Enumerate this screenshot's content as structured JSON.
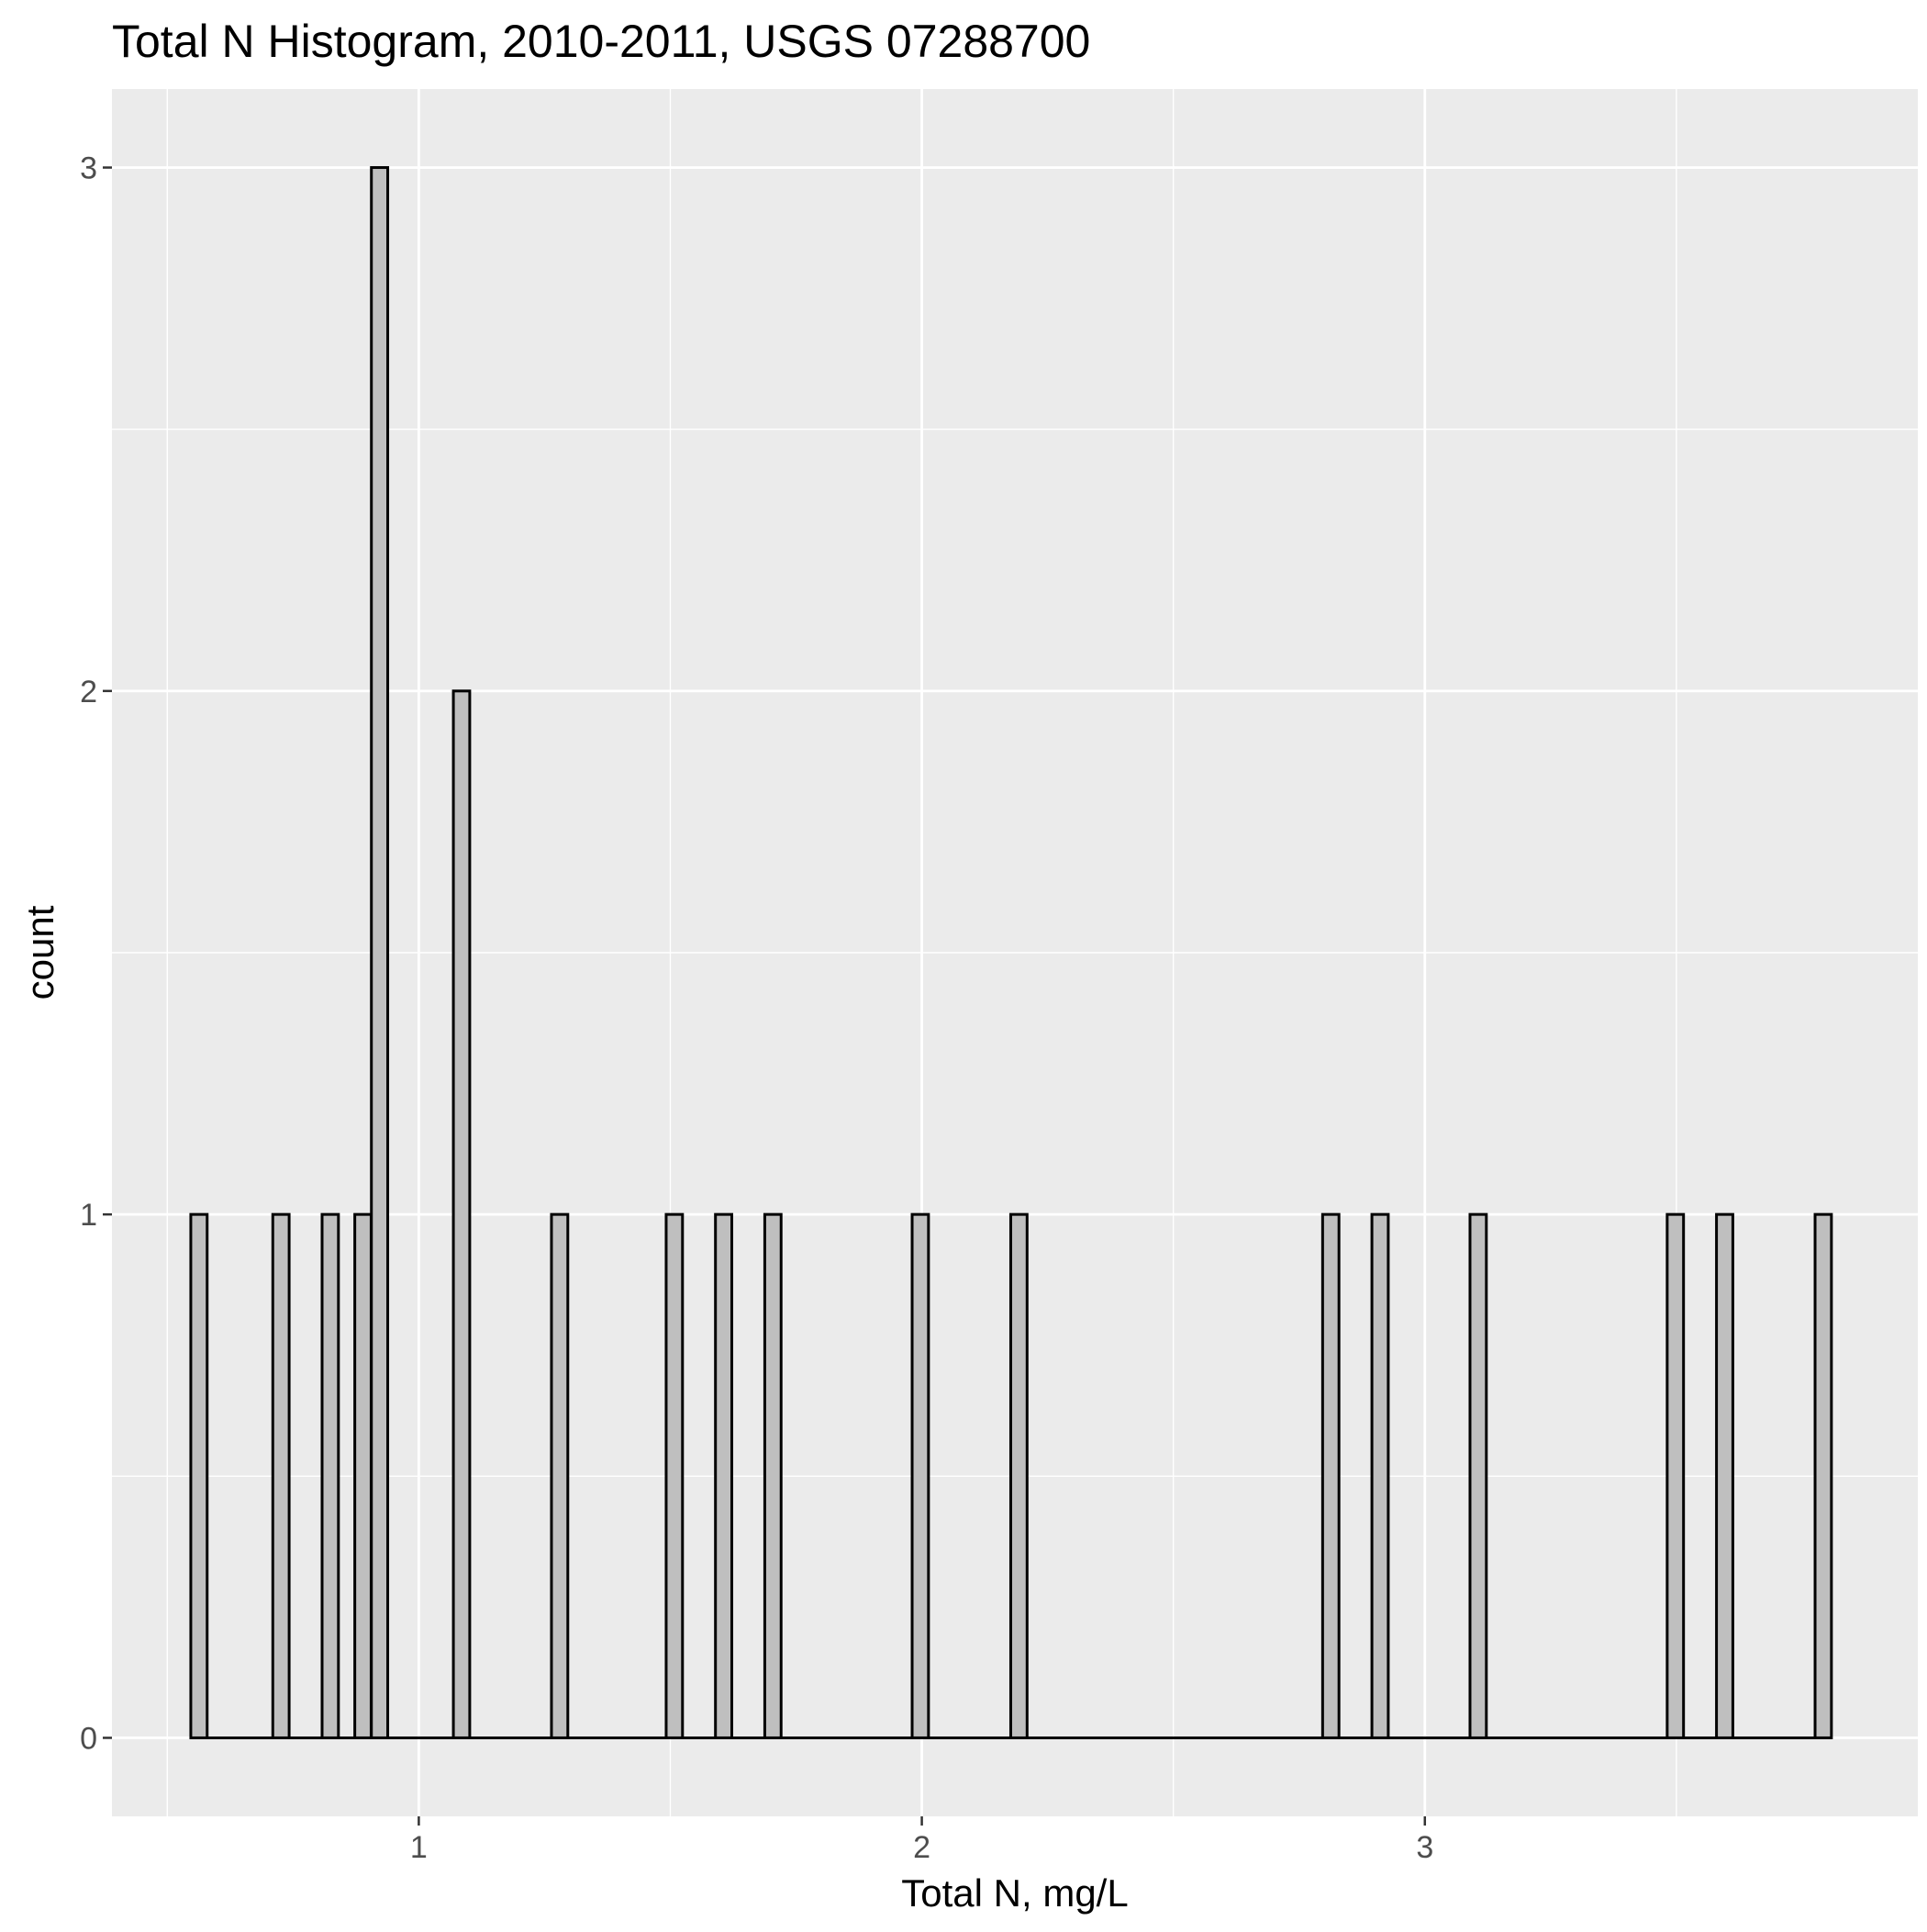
{
  "chart_data": {
    "type": "bar",
    "title": "Total N Histogram, 2010-2011, USGS 07288700",
    "xlabel": "Total N, mg/L",
    "ylabel": "count",
    "xlim": [
      0.39,
      3.98
    ],
    "ylim": [
      -0.15,
      3.15
    ],
    "xticks": [
      {
        "value": 1,
        "label": "1"
      },
      {
        "value": 2,
        "label": "2"
      },
      {
        "value": 3,
        "label": "3"
      }
    ],
    "yticks": [
      {
        "value": 0,
        "label": "0"
      },
      {
        "value": 1,
        "label": "1"
      },
      {
        "value": 2,
        "label": "2"
      },
      {
        "value": 3,
        "label": "3"
      }
    ],
    "x_minor_gridlines": [
      0.5,
      1.5,
      2.5,
      3.5
    ],
    "y_minor_gridlines": [
      0.5,
      1.5,
      2.5
    ],
    "grid": true,
    "bin_width": 0.0325,
    "x_start": 0.547,
    "x_end": 3.808,
    "bins": [
      {
        "x": 0.563,
        "count": 1
      },
      {
        "x": 0.726,
        "count": 1
      },
      {
        "x": 0.824,
        "count": 1
      },
      {
        "x": 0.889,
        "count": 1
      },
      {
        "x": 0.922,
        "count": 3
      },
      {
        "x": 1.085,
        "count": 2
      },
      {
        "x": 1.28,
        "count": 1
      },
      {
        "x": 1.508,
        "count": 1
      },
      {
        "x": 1.606,
        "count": 1
      },
      {
        "x": 1.704,
        "count": 1
      },
      {
        "x": 1.997,
        "count": 1
      },
      {
        "x": 2.193,
        "count": 1
      },
      {
        "x": 2.813,
        "count": 1
      },
      {
        "x": 2.911,
        "count": 1
      },
      {
        "x": 3.106,
        "count": 1
      },
      {
        "x": 3.498,
        "count": 1
      },
      {
        "x": 3.596,
        "count": 1
      },
      {
        "x": 3.792,
        "count": 1
      }
    ],
    "colors": {
      "panel": "#ebebeb",
      "grid": "#ffffff",
      "bar_fill": "#bfbfbf",
      "bar_stroke": "#000000"
    }
  }
}
